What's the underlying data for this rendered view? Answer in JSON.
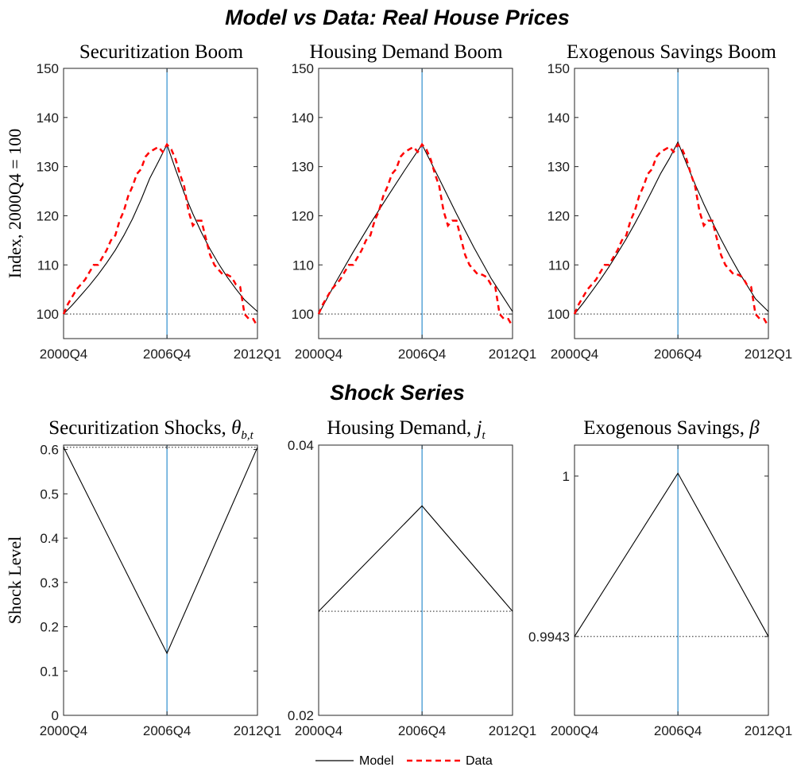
{
  "figure": {
    "top_title": "Model vs Data: Real House Prices",
    "bottom_title": "Shock Series",
    "legend": [
      {
        "label": "Model",
        "color": "#000000",
        "style": "solid"
      },
      {
        "label": "Data",
        "color": "#ff0000",
        "style": "dashed"
      }
    ],
    "colors": {
      "model": "#000000",
      "data": "#ff0000",
      "vline": "#2f8fce",
      "baseline": "#000000"
    }
  },
  "chart_data": [
    {
      "type": "line",
      "title": "Securitization Boom",
      "ylabel": "Index, 2000Q4 = 100",
      "xlim": [
        0,
        45
      ],
      "ylim": [
        95,
        150
      ],
      "yticks": [
        100,
        110,
        120,
        130,
        140,
        150
      ],
      "yticklabels": [
        "100",
        "110",
        "120",
        "130",
        "140",
        "150"
      ],
      "xticks": [
        0,
        24,
        45
      ],
      "xticklabels": [
        "2000Q4",
        "2006Q4",
        "2012Q1"
      ],
      "vline": 24,
      "baseline": 100,
      "series": [
        {
          "name": "Model",
          "x": [
            0,
            2,
            4,
            6,
            8,
            10,
            12,
            14,
            16,
            18,
            20,
            22,
            24,
            26,
            28,
            30,
            32,
            34,
            36,
            38,
            40,
            42,
            45
          ],
          "values": [
            100,
            101.8,
            103.8,
            105.8,
            108.0,
            110.4,
            113.0,
            116.0,
            119.4,
            123.3,
            127.6,
            131.0,
            134.5,
            129.4,
            124.6,
            120.4,
            116.6,
            113.2,
            110.2,
            107.5,
            105.1,
            102.9,
            100.5
          ]
        },
        {
          "name": "Data",
          "x": [
            0,
            1,
            2,
            3,
            4,
            5,
            6,
            7,
            8,
            9,
            10,
            11,
            12,
            13,
            14,
            15,
            16,
            17,
            18,
            19,
            20,
            21,
            22,
            23,
            24,
            25,
            26,
            27,
            28,
            29,
            30,
            31,
            32,
            33,
            34,
            35,
            36,
            37,
            38,
            39,
            40,
            41,
            42,
            43,
            44,
            45
          ],
          "values": [
            100,
            102,
            103.5,
            105,
            106,
            107,
            108.5,
            110,
            110,
            111.5,
            113,
            115,
            116,
            119,
            121,
            124,
            126,
            128.5,
            129.5,
            132,
            133,
            133.5,
            134,
            133,
            134.5,
            133.5,
            131.5,
            128.5,
            126,
            121,
            118,
            119,
            119,
            115.5,
            112,
            110,
            109,
            108,
            108,
            107.5,
            106,
            105.5,
            100,
            99,
            99,
            97.5
          ]
        }
      ]
    },
    {
      "type": "line",
      "title": "Housing Demand Boom",
      "xlim": [
        0,
        45
      ],
      "ylim": [
        95,
        150
      ],
      "yticks": [
        100,
        110,
        120,
        130,
        140,
        150
      ],
      "yticklabels": [
        "100",
        "110",
        "120",
        "130",
        "140",
        "150"
      ],
      "xticks": [
        0,
        24,
        45
      ],
      "xticklabels": [
        "2000Q4",
        "2006Q4",
        "2012Q1"
      ],
      "vline": 24,
      "baseline": 100,
      "series": [
        {
          "name": "Model",
          "x": [
            0,
            4,
            8,
            12,
            16,
            20,
            24,
            28,
            32,
            36,
            40,
            45
          ],
          "values": [
            100,
            106.5,
            112.6,
            118.4,
            123.9,
            129.3,
            134.5,
            127.5,
            120.4,
            113.6,
            107.3,
            100.5
          ]
        },
        {
          "name": "Data",
          "x": [
            0,
            1,
            2,
            3,
            4,
            5,
            6,
            7,
            8,
            9,
            10,
            11,
            12,
            13,
            14,
            15,
            16,
            17,
            18,
            19,
            20,
            21,
            22,
            23,
            24,
            25,
            26,
            27,
            28,
            29,
            30,
            31,
            32,
            33,
            34,
            35,
            36,
            37,
            38,
            39,
            40,
            41,
            42,
            43,
            44,
            45
          ],
          "values": [
            100,
            102,
            103.5,
            105,
            106,
            107,
            108.5,
            110,
            110,
            111.5,
            113,
            115,
            116,
            119,
            121,
            124,
            126,
            128.5,
            129.5,
            132,
            133,
            133.5,
            134,
            133,
            134.5,
            133.5,
            131.5,
            128.5,
            126,
            121,
            118,
            119,
            119,
            115.5,
            112,
            110,
            109,
            108,
            108,
            107.5,
            106,
            105.5,
            100,
            99,
            99,
            97.5
          ]
        }
      ]
    },
    {
      "type": "line",
      "title": "Exogenous Savings Boom",
      "xlim": [
        0,
        45
      ],
      "ylim": [
        95,
        150
      ],
      "yticks": [
        100,
        110,
        120,
        130,
        140,
        150
      ],
      "yticklabels": [
        "100",
        "110",
        "120",
        "130",
        "140",
        "150"
      ],
      "xticks": [
        0,
        24,
        45
      ],
      "xticklabels": [
        "2000Q4",
        "2006Q4",
        "2012Q1"
      ],
      "vline": 24,
      "baseline": 100,
      "series": [
        {
          "name": "Model",
          "x": [
            0,
            2,
            4,
            6,
            8,
            10,
            12,
            14,
            16,
            18,
            20,
            22,
            24,
            26,
            28,
            30,
            32,
            34,
            36,
            38,
            40,
            42,
            45
          ],
          "values": [
            100,
            102.2,
            104.6,
            107.0,
            109.6,
            112.4,
            115.3,
            118.4,
            121.7,
            125.1,
            128.6,
            131.6,
            135.0,
            130.6,
            126.4,
            122.4,
            118.7,
            115.2,
            111.9,
            108.8,
            105.9,
            103.1,
            100.5
          ]
        },
        {
          "name": "Data",
          "x": [
            0,
            1,
            2,
            3,
            4,
            5,
            6,
            7,
            8,
            9,
            10,
            11,
            12,
            13,
            14,
            15,
            16,
            17,
            18,
            19,
            20,
            21,
            22,
            23,
            24,
            25,
            26,
            27,
            28,
            29,
            30,
            31,
            32,
            33,
            34,
            35,
            36,
            37,
            38,
            39,
            40,
            41,
            42,
            43,
            44,
            45
          ],
          "values": [
            100,
            102,
            103.5,
            105,
            106,
            107,
            108.5,
            110,
            110,
            111.5,
            113,
            115,
            116,
            119,
            121,
            124,
            126,
            128.5,
            129.5,
            132,
            133,
            133.5,
            134,
            133,
            134.5,
            133.5,
            131.5,
            128.5,
            126,
            121,
            118,
            119,
            119,
            115.5,
            112,
            110,
            109,
            108,
            108,
            107.5,
            106,
            105.5,
            100,
            99,
            99,
            97.5
          ]
        }
      ]
    },
    {
      "type": "line",
      "title": "Securitization Shocks, θb,t",
      "title_main": "Securitization Shocks, ",
      "title_sym": "θ",
      "title_sub": "b,t",
      "ylabel": "Shock Level",
      "xlim": [
        0,
        45
      ],
      "ylim": [
        0,
        0.61
      ],
      "yticks": [
        0,
        0.1,
        0.2,
        0.3,
        0.4,
        0.5,
        0.6
      ],
      "yticklabels": [
        "0",
        "0.1",
        "0.2",
        "0.3",
        "0.4",
        "0.5",
        "0.6"
      ],
      "xticks": [
        0,
        24,
        45
      ],
      "xticklabels": [
        "2000Q4",
        "2006Q4",
        "2012Q1"
      ],
      "vline": 24,
      "baseline": 0.605,
      "series": [
        {
          "name": "Model",
          "x": [
            0,
            24,
            45
          ],
          "values": [
            0.605,
            0.14,
            0.605
          ]
        }
      ]
    },
    {
      "type": "line",
      "title": "Housing Demand, jt",
      "title_main": "Housing Demand, ",
      "title_sym": "j",
      "title_sub": "t",
      "xlim": [
        0,
        45
      ],
      "ylim": [
        0.02,
        0.04
      ],
      "yticks": [
        0.02,
        0.04
      ],
      "yticklabels": [
        "0.02",
        "0.04"
      ],
      "xticks": [
        0,
        24,
        45
      ],
      "xticklabels": [
        "2000Q4",
        "2006Q4",
        "2012Q1"
      ],
      "vline": 24,
      "baseline": 0.0277,
      "series": [
        {
          "name": "Model",
          "x": [
            0,
            24,
            45
          ],
          "values": [
            0.0277,
            0.0355,
            0.0277
          ]
        }
      ]
    },
    {
      "type": "line",
      "title": "Exogenous Savings, β",
      "title_main": "Exogenous Savings, ",
      "title_sym": "β",
      "title_sub": "",
      "xlim": [
        0,
        45
      ],
      "ylim": [
        0.9915,
        1.0011
      ],
      "yticks": [
        0.9943,
        1.0
      ],
      "yticklabels": [
        "0.9943",
        "1"
      ],
      "xticks": [
        0,
        24,
        45
      ],
      "xticklabels": [
        "2000Q4",
        "2006Q4",
        "2012Q1"
      ],
      "vline": 24,
      "baseline": 0.9943,
      "series": [
        {
          "name": "Model",
          "x": [
            0,
            24,
            45
          ],
          "values": [
            0.9943,
            1.0001,
            0.9943
          ]
        }
      ]
    }
  ]
}
